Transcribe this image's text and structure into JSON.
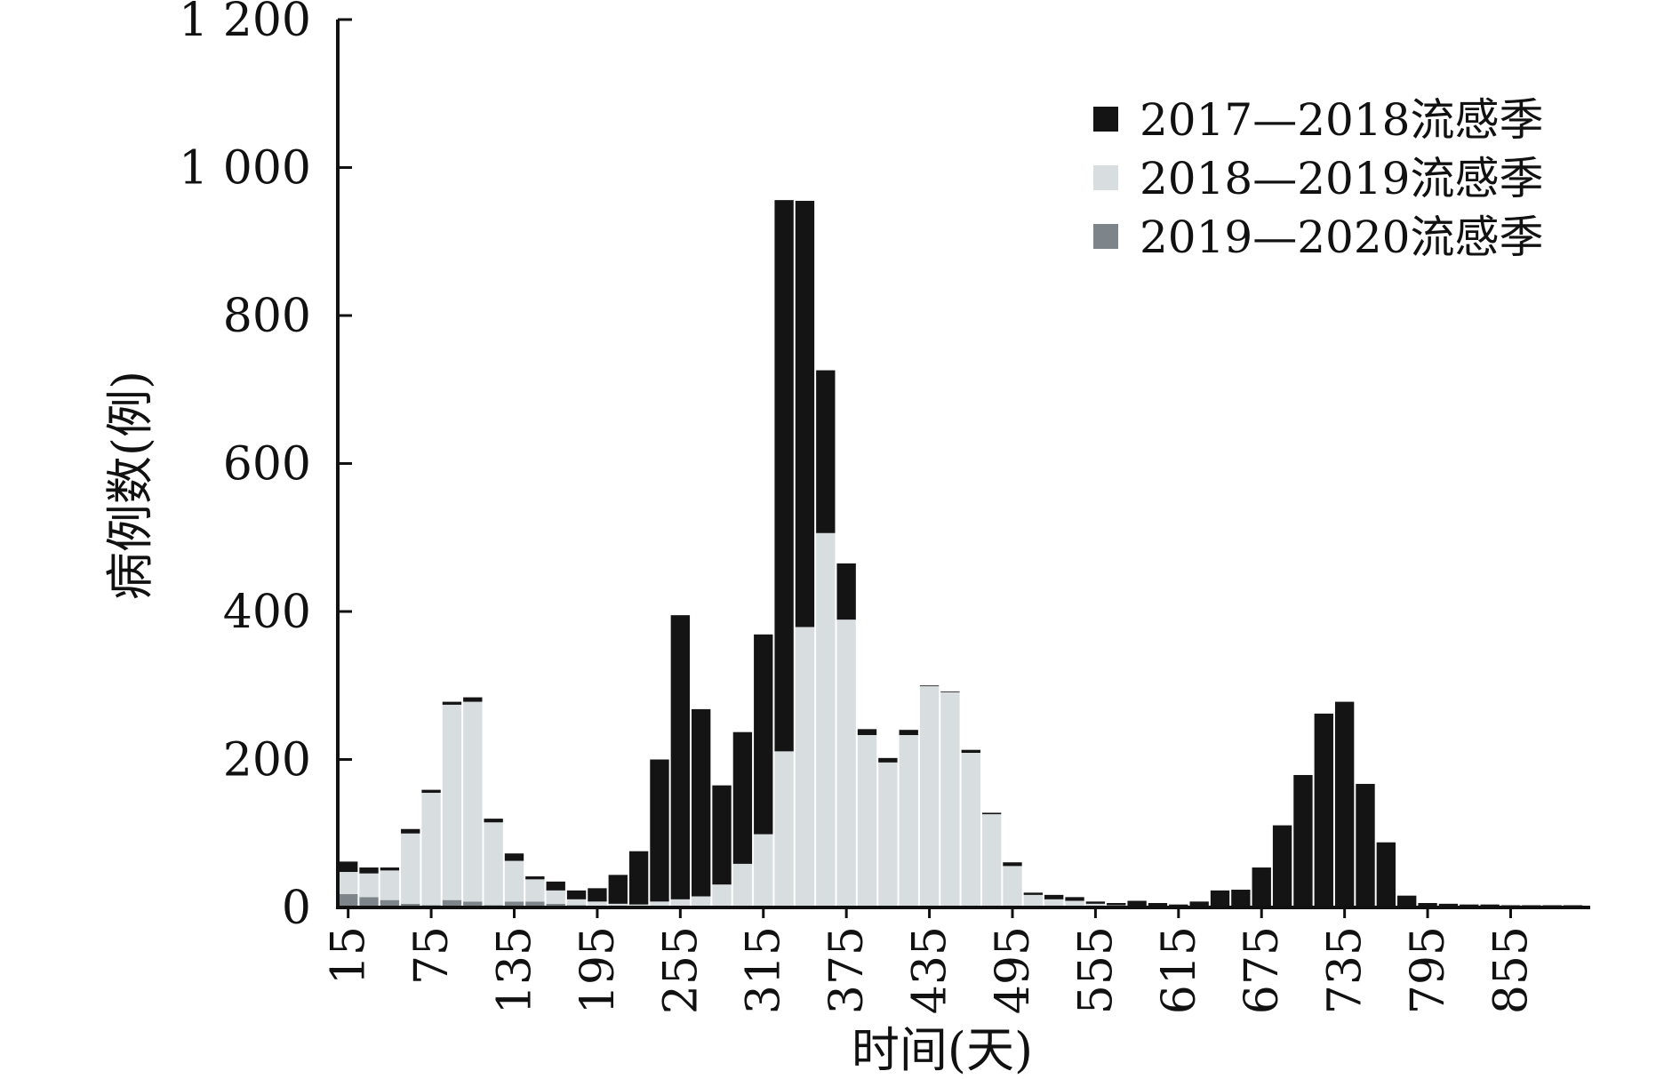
{
  "chart_data": {
    "type": "bar",
    "stacked": true,
    "xlabel": "时间(天)",
    "ylabel": "病例数(例)",
    "ylim": [
      0,
      1200
    ],
    "yticks": [
      "0",
      "200",
      "400",
      "600",
      "800",
      "1 000",
      "1 200"
    ],
    "ytick_values": [
      0,
      200,
      400,
      600,
      800,
      1000,
      1200
    ],
    "xticks": [
      "15",
      "75",
      "135",
      "195",
      "255",
      "315",
      "375",
      "435",
      "495",
      "555",
      "615",
      "675",
      "735",
      "795",
      "855"
    ],
    "xtick_values": [
      15,
      75,
      135,
      195,
      255,
      315,
      375,
      435,
      495,
      555,
      615,
      675,
      735,
      795,
      855
    ],
    "x": [
      15,
      30,
      45,
      60,
      75,
      90,
      105,
      120,
      135,
      150,
      165,
      180,
      195,
      210,
      225,
      240,
      255,
      270,
      285,
      300,
      315,
      330,
      345,
      360,
      375,
      390,
      405,
      420,
      435,
      450,
      465,
      480,
      495,
      510,
      525,
      540,
      555,
      570,
      585,
      600,
      615,
      630,
      645,
      660,
      675,
      690,
      705,
      720,
      735,
      750,
      765,
      780,
      795,
      810,
      825,
      840,
      855,
      870,
      885,
      900
    ],
    "bin_days": 15,
    "legend_position": "top-right",
    "grid": false,
    "series": [
      {
        "name": "2019—2020流感季",
        "color": "#7d858a",
        "values": [
          18,
          14,
          10,
          5,
          3,
          10,
          8,
          3,
          8,
          8,
          5,
          3,
          2,
          1,
          1,
          1,
          1,
          1,
          1,
          1,
          1,
          1,
          1,
          1,
          1,
          1,
          1,
          1,
          1,
          1,
          1,
          1,
          1,
          1,
          1,
          1,
          1,
          1,
          1,
          1,
          1,
          1,
          1,
          1,
          1,
          1,
          1,
          1,
          1,
          1,
          1,
          1,
          1,
          1,
          1,
          1,
          1,
          1,
          1,
          1
        ]
      },
      {
        "name": "2018—2019流感季",
        "color": "#d8dedf",
        "values": [
          30,
          32,
          40,
          95,
          152,
          264,
          270,
          112,
          55,
          30,
          18,
          8,
          6,
          4,
          3,
          7,
          10,
          14,
          30,
          58,
          98,
          210,
          378,
          505,
          388,
          232,
          195,
          232,
          298,
          290,
          208,
          125,
          55,
          16,
          10,
          8,
          4,
          2,
          1,
          1,
          1,
          1,
          1,
          1,
          1,
          1,
          1,
          1,
          1,
          1,
          1,
          1,
          1,
          1,
          1,
          1,
          1,
          1,
          1,
          1
        ]
      },
      {
        "name": "2017—2018流感季",
        "color": "#141414",
        "values": [
          14,
          8,
          4,
          6,
          4,
          4,
          6,
          5,
          10,
          4,
          12,
          12,
          18,
          39,
          72,
          192,
          384,
          253,
          134,
          178,
          270,
          745,
          576,
          220,
          76,
          8,
          6,
          7,
          1,
          1,
          4,
          2,
          5,
          3,
          6,
          5,
          3,
          3,
          7,
          4,
          2,
          6,
          21,
          22,
          52,
          109,
          177,
          260,
          276,
          165,
          86,
          14,
          4,
          3,
          2,
          2,
          1,
          1,
          1,
          1
        ]
      }
    ]
  }
}
